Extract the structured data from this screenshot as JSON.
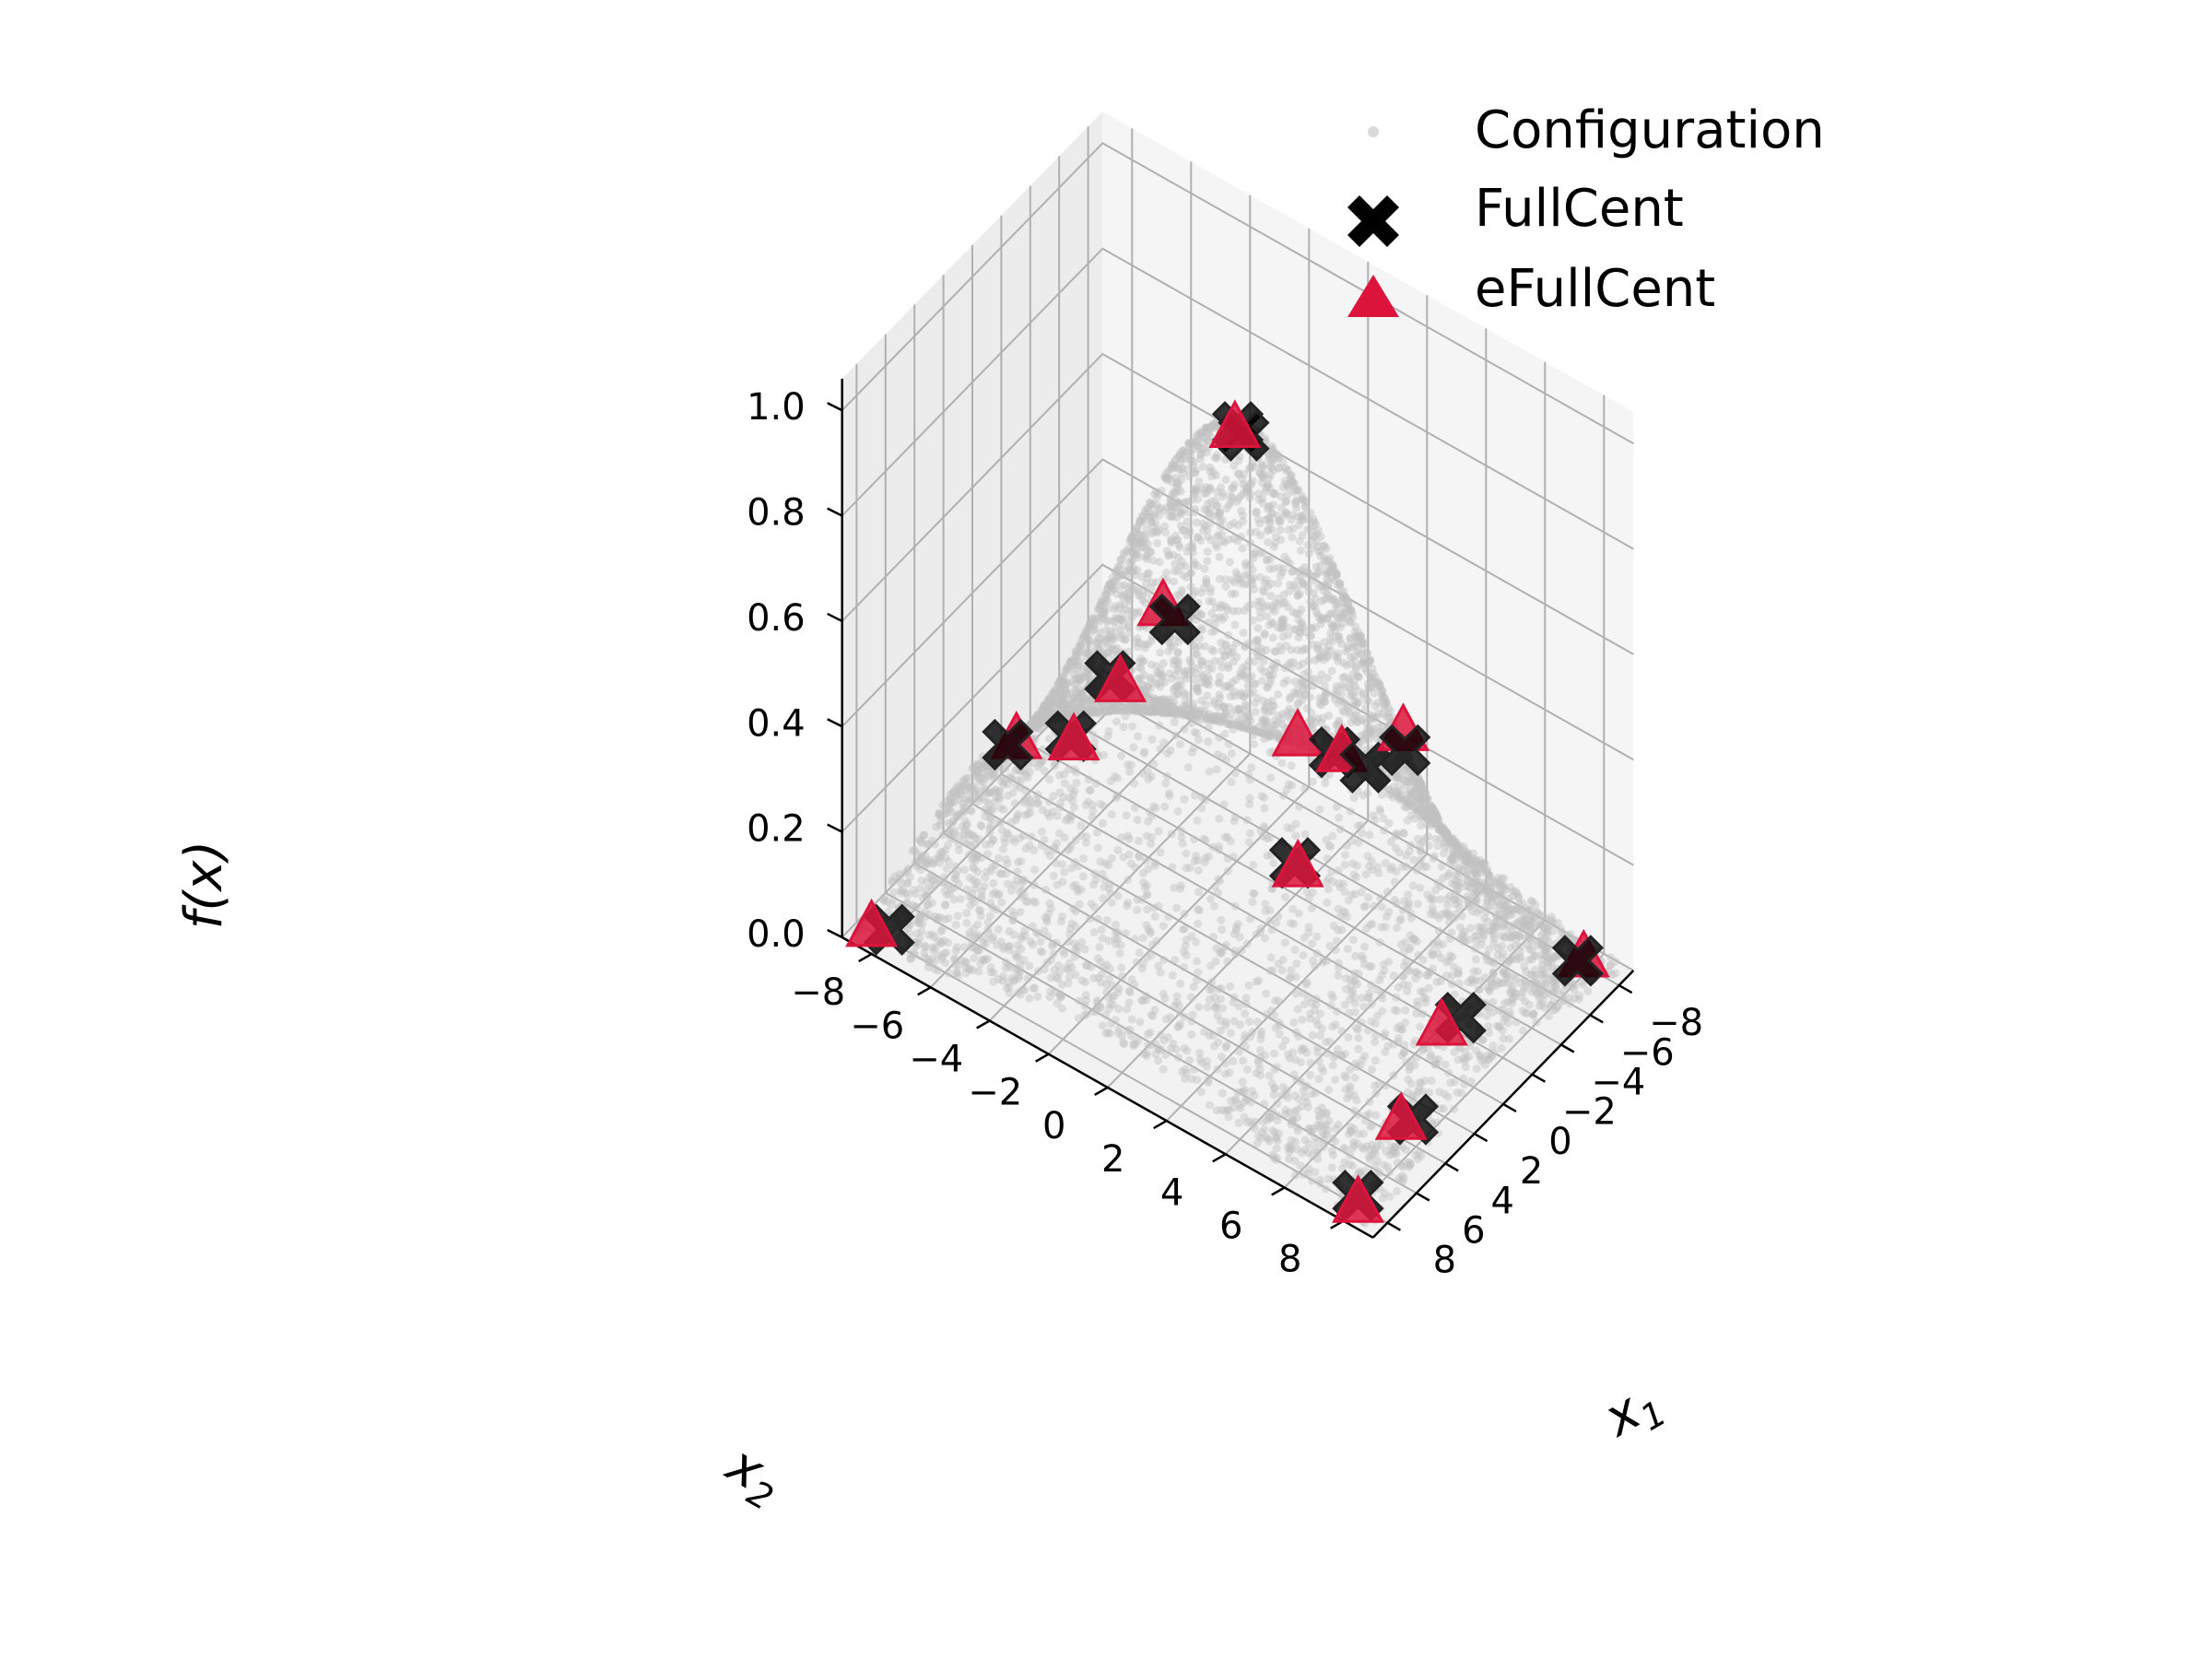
{
  "chart_data": {
    "type": "scatter3d",
    "view": {
      "elevation": 30,
      "azimuth": 45
    },
    "xlabel_symbol": "x",
    "xlabel_subscript": "1",
    "ylabel_symbol": "x",
    "ylabel_subscript": "2",
    "zlabel": "f(x)",
    "xlim": [
      -9,
      9
    ],
    "ylim": [
      -9,
      9
    ],
    "zlim": [
      0,
      1.06
    ],
    "x_ticks": [
      "−8",
      "−6",
      "−4",
      "−2",
      "0",
      "2",
      "4",
      "6",
      "8"
    ],
    "y_ticks": [
      "−8",
      "−6",
      "−4",
      "−2",
      "0",
      "2",
      "4",
      "6",
      "8"
    ],
    "z_ticks": [
      "0.0",
      "0.2",
      "0.4",
      "0.6",
      "0.8",
      "1.0"
    ],
    "grid": true,
    "legend_position": "top-right",
    "surface_function": "exp(-(x1^2 + x2^2)/32)",
    "series": [
      {
        "name": "Configuration",
        "marker": "dot",
        "color": "#c0c0c0",
        "point_count": 6000
      },
      {
        "name": "FullCent",
        "marker": "x",
        "color": "#000000",
        "points": [
          [
            -8.7,
            -8.6,
            0.01
          ],
          [
            -7.8,
            0.5,
            0.15
          ],
          [
            0.0,
            -7.8,
            0.15
          ],
          [
            -7.6,
            7.8,
            0.02
          ],
          [
            -7.7,
            -0.5,
            0.15
          ],
          [
            0.5,
            7.8,
            0.14
          ],
          [
            3.8,
            7.8,
            0.04
          ],
          [
            8.2,
            -7.8,
            0.03
          ],
          [
            8.0,
            8.0,
            0.02
          ],
          [
            0.0,
            0.2,
            0.99
          ],
          [
            0.0,
            0.0,
            1.0
          ],
          [
            -3.8,
            3.8,
            0.4
          ],
          [
            3.8,
            -3.8,
            0.4
          ],
          [
            3.8,
            3.8,
            0.4
          ],
          [
            -3.6,
            -3.9,
            0.41
          ]
        ]
      },
      {
        "name": "eFullCent",
        "marker": "triangle",
        "color": "#dc143c",
        "points": [
          [
            -8.6,
            -8.2,
            0.01
          ],
          [
            -7.8,
            -0.3,
            0.15
          ],
          [
            -0.6,
            -7.8,
            0.14
          ],
          [
            -7.8,
            7.9,
            0.02
          ],
          [
            -7.4,
            -1.6,
            0.15
          ],
          [
            1.4,
            7.6,
            0.14
          ],
          [
            4.2,
            7.6,
            0.04
          ],
          [
            8.6,
            -8.2,
            0.03
          ],
          [
            8.4,
            8.2,
            0.02
          ],
          [
            0.2,
            0.0,
            1.0
          ],
          [
            -4.5,
            3.4,
            0.4
          ],
          [
            4.0,
            -3.6,
            0.4
          ],
          [
            4.0,
            4.0,
            0.4
          ],
          [
            -3.8,
            -4.4,
            0.41
          ]
        ]
      }
    ]
  }
}
